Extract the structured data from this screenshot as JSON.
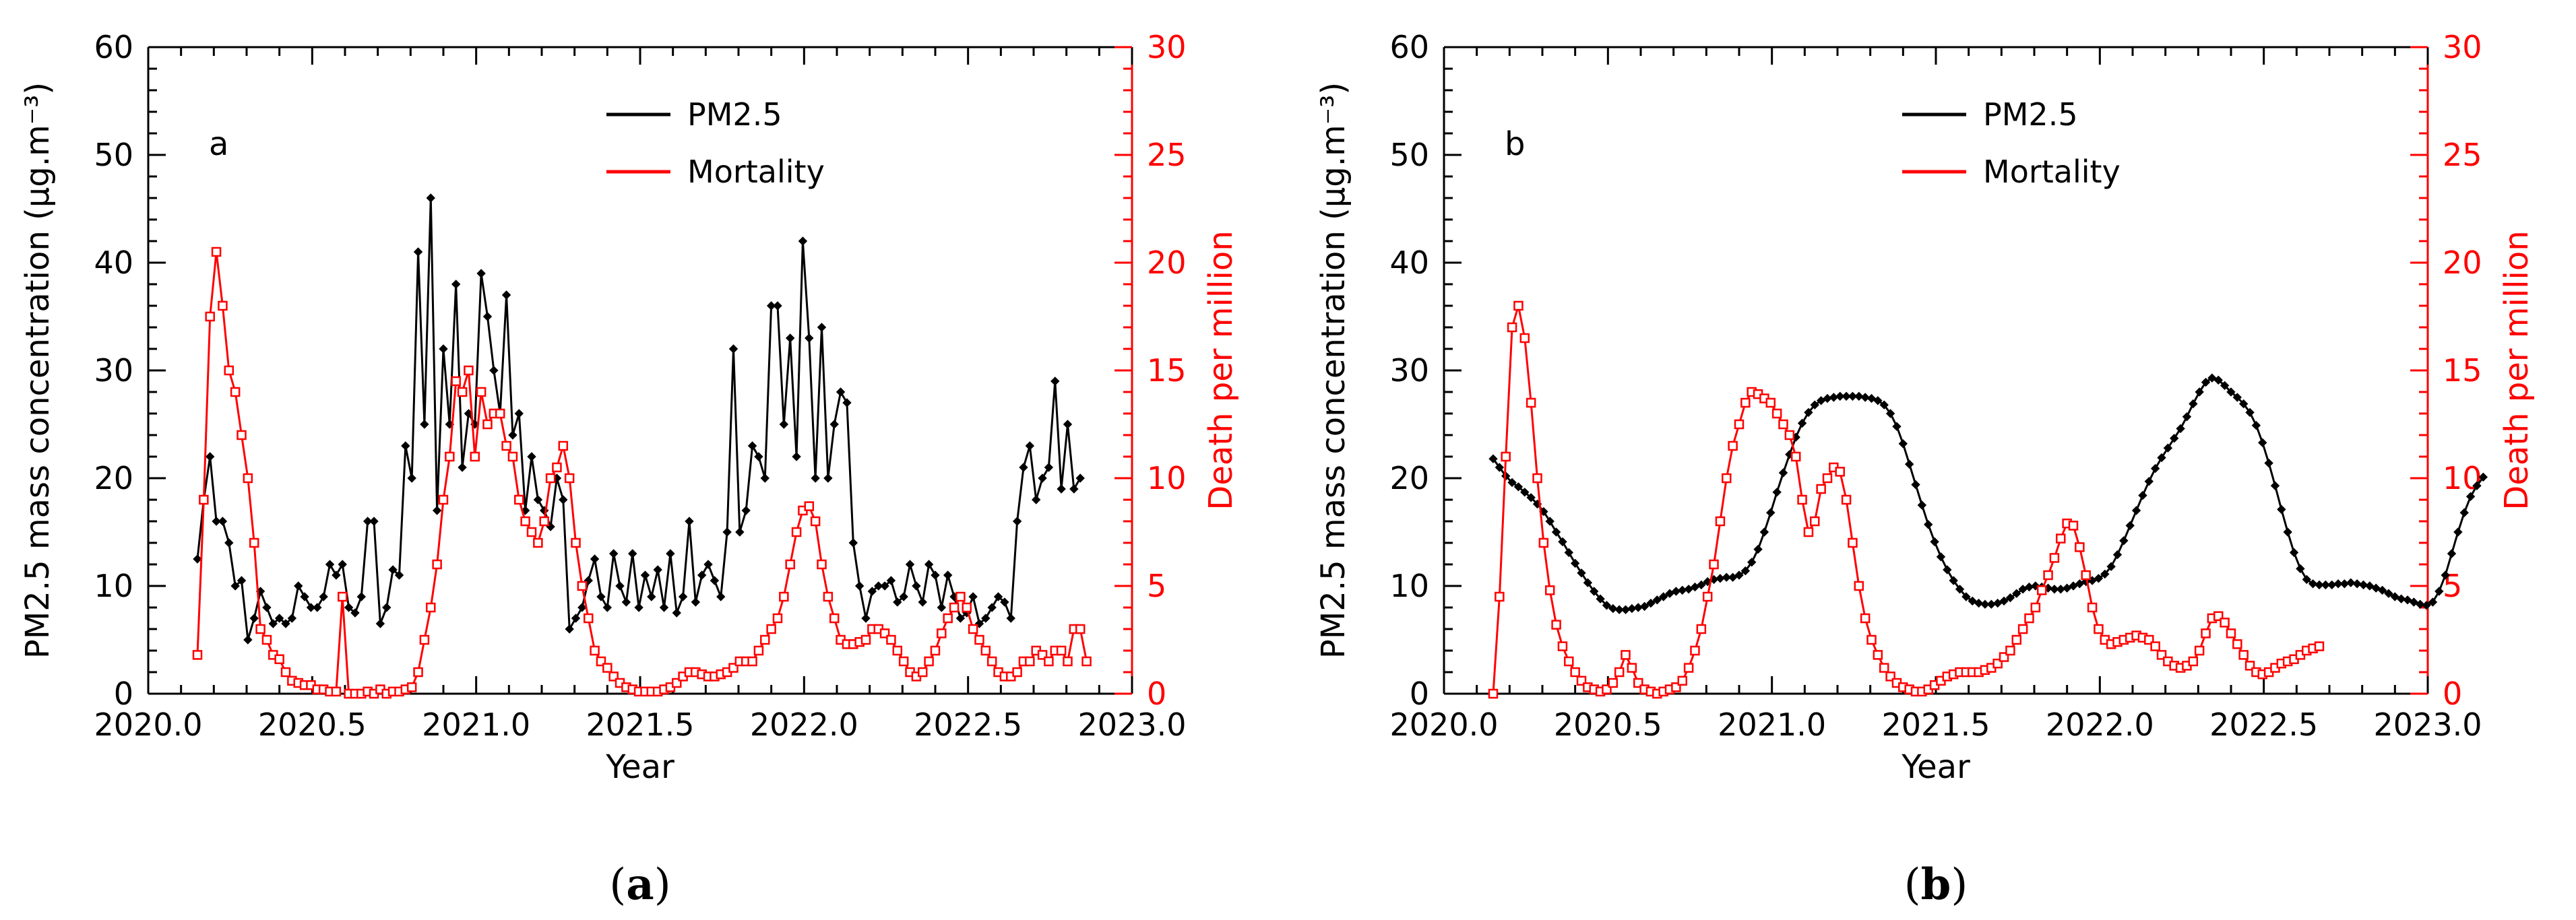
{
  "colors": {
    "pm25": "#000000",
    "mortality": "#ff0000"
  },
  "chart_data": [
    {
      "type": "line",
      "panel_label": "a",
      "caption": {
        "open": "(",
        "letter": "a",
        "close": ")"
      },
      "xlabel": "Year",
      "ylabel_left": "PM2.5 mass concentration (µg.m⁻³)",
      "ylabel_right": "Death per million",
      "xlim": [
        2020.0,
        2023.0
      ],
      "ylim_left": [
        0,
        60
      ],
      "ylim_right": [
        0,
        30
      ],
      "x_ticks": [
        "2020.0",
        "2020.5",
        "2021.0",
        "2021.5",
        "2022.0",
        "2022.5",
        "2023.0"
      ],
      "y_left_ticks": [
        "0",
        "10",
        "20",
        "30",
        "40",
        "50",
        "60"
      ],
      "y_right_ticks": [
        "0",
        "5",
        "10",
        "15",
        "20",
        "25",
        "30"
      ],
      "legend": [
        "PM2.5",
        "Mortality"
      ],
      "x_start": 2020.15,
      "x_step": 0.01923,
      "series": [
        {
          "name": "PM2.5",
          "axis": "left",
          "marker": "diamond",
          "values": [
            12.5,
            18,
            22,
            16,
            16,
            14,
            10,
            10.5,
            5,
            7,
            9.5,
            8,
            6.5,
            7,
            6.5,
            7,
            10,
            9,
            8,
            8,
            9,
            12,
            11,
            12,
            8,
            7.5,
            9,
            16,
            16,
            6.5,
            8,
            11.5,
            11,
            23,
            20,
            41,
            25,
            46,
            17,
            32,
            25,
            38,
            21,
            26,
            25,
            39,
            35,
            30,
            26,
            37,
            24,
            26,
            17,
            22,
            18,
            17,
            15.5,
            20,
            18,
            6,
            7,
            8,
            10.5,
            12.5,
            9,
            8,
            13,
            10,
            8.5,
            13,
            8,
            11,
            9,
            11.5,
            8,
            13,
            7.5,
            9,
            16,
            8.5,
            11,
            12,
            10.5,
            9,
            15,
            32,
            15,
            17,
            23,
            22,
            20,
            36,
            36,
            25,
            33,
            22,
            42,
            33,
            20,
            34,
            20,
            25,
            28,
            27,
            14,
            10,
            7,
            9.5,
            10,
            10,
            10.5,
            8.5,
            9,
            12,
            10,
            8.5,
            12,
            11,
            8,
            11,
            9,
            7,
            7.5,
            9,
            6.5,
            7,
            8,
            9,
            8.5,
            7,
            16,
            21,
            23,
            18,
            20,
            21,
            29,
            19,
            25,
            19,
            20
          ]
        },
        {
          "name": "Mortality",
          "axis": "right",
          "marker": "square",
          "values": [
            1.8,
            9,
            17.5,
            20.5,
            18,
            15,
            14,
            12,
            10,
            7,
            3,
            2.5,
            1.8,
            1.6,
            1,
            0.6,
            0.5,
            0.4,
            0.4,
            0.2,
            0.2,
            0.1,
            0.1,
            4.5,
            0,
            0,
            0,
            0.1,
            0,
            0.2,
            0,
            0.1,
            0.1,
            0.2,
            0.3,
            1,
            2.5,
            4,
            6,
            9,
            11,
            14.5,
            14,
            15,
            11,
            14,
            12.5,
            13,
            13,
            11.5,
            11,
            9,
            8,
            7.5,
            7,
            8,
            10,
            10.5,
            11.5,
            10,
            7,
            5,
            3.5,
            2,
            1.5,
            1.2,
            0.8,
            0.5,
            0.3,
            0.2,
            0.1,
            0.1,
            0.1,
            0.1,
            0.2,
            0.3,
            0.5,
            0.8,
            1,
            1,
            0.9,
            0.8,
            0.8,
            0.9,
            1,
            1.2,
            1.5,
            1.5,
            1.5,
            2,
            2.5,
            3,
            3.5,
            4.5,
            6,
            7.5,
            8.5,
            8.7,
            8,
            6,
            4.5,
            3.5,
            2.5,
            2.3,
            2.3,
            2.4,
            2.5,
            3,
            3,
            2.8,
            2.5,
            2,
            1.5,
            1,
            0.8,
            1,
            1.5,
            2,
            2.8,
            3.5,
            4,
            4.5,
            4,
            3,
            2.5,
            2,
            1.5,
            1,
            0.8,
            0.8,
            1,
            1.5,
            1.5,
            2,
            1.8,
            1.5,
            2,
            2,
            1.5,
            3,
            3,
            1.5
          ]
        }
      ]
    },
    {
      "type": "line",
      "panel_label": "b",
      "caption": {
        "open": "(",
        "letter": "b",
        "close": ")"
      },
      "xlabel": "Year",
      "ylabel_left": "PM2.5 mass concentration (µg.m⁻³)",
      "ylabel_right": "Death per million",
      "xlim": [
        2020.0,
        2023.0
      ],
      "ylim_left": [
        0,
        60
      ],
      "ylim_right": [
        0,
        30
      ],
      "x_ticks": [
        "2020.0",
        "2020.5",
        "2021.0",
        "2021.5",
        "2022.0",
        "2022.5",
        "2023.0"
      ],
      "y_left_ticks": [
        "0",
        "10",
        "20",
        "30",
        "40",
        "50",
        "60"
      ],
      "y_right_ticks": [
        "0",
        "5",
        "10",
        "15",
        "20",
        "25",
        "30"
      ],
      "legend": [
        "PM2.5",
        "Mortality"
      ],
      "x_start": 2020.15,
      "x_step": 0.01923,
      "series": [
        {
          "name": "PM2.5",
          "axis": "left",
          "marker": "diamond",
          "values": [
            21.8,
            21,
            20.2,
            19.6,
            19.2,
            18.7,
            18.2,
            17.6,
            16.9,
            16,
            15,
            14.1,
            13.1,
            12.1,
            11.2,
            10.3,
            9.5,
            8.8,
            8.2,
            7.9,
            7.8,
            7.8,
            7.9,
            8,
            8.1,
            8.4,
            8.7,
            9,
            9.3,
            9.5,
            9.6,
            9.7,
            9.9,
            10.1,
            10.4,
            10.6,
            10.7,
            10.8,
            10.8,
            11,
            11.4,
            12.2,
            13.4,
            15,
            16.8,
            18.7,
            20.5,
            22.2,
            23.8,
            25.1,
            26.1,
            26.8,
            27.2,
            27.4,
            27.5,
            27.6,
            27.6,
            27.6,
            27.6,
            27.5,
            27.4,
            27.2,
            26.8,
            26,
            24.8,
            23.2,
            21.3,
            19.4,
            17.5,
            15.7,
            14.1,
            12.7,
            11.5,
            10.5,
            9.7,
            9,
            8.6,
            8.4,
            8.3,
            8.3,
            8.4,
            8.6,
            8.9,
            9.3,
            9.7,
            9.9,
            10,
            9.9,
            9.8,
            9.7,
            9.7,
            9.8,
            10,
            10.2,
            10.4,
            10.5,
            10.7,
            11.1,
            11.8,
            12.9,
            14.2,
            15.6,
            17,
            18.4,
            19.7,
            20.9,
            21.9,
            22.8,
            23.7,
            24.6,
            25.7,
            26.9,
            28,
            28.9,
            29.3,
            29.1,
            28.6,
            28,
            27.5,
            26.9,
            26.1,
            24.9,
            23.3,
            21.4,
            19.3,
            17.1,
            15,
            13.1,
            11.6,
            10.6,
            10.2,
            10.1,
            10.1,
            10.1,
            10.2,
            10.2,
            10.3,
            10.2,
            10.1,
            10,
            9.8,
            9.6,
            9.3,
            9,
            8.8,
            8.7,
            8.5,
            8.3,
            8.2,
            8.5,
            9.5,
            11,
            13,
            15,
            16.8,
            18.3,
            19.3,
            20.1
          ]
        },
        {
          "name": "Mortality",
          "axis": "right",
          "marker": "square",
          "values": [
            0,
            4.5,
            11,
            17,
            18,
            16.5,
            13.5,
            10,
            7,
            4.8,
            3.2,
            2.2,
            1.5,
            1,
            0.6,
            0.3,
            0.2,
            0.1,
            0.2,
            0.5,
            1,
            1.8,
            1.2,
            0.5,
            0.2,
            0.1,
            0,
            0.1,
            0.2,
            0.3,
            0.6,
            1.2,
            2,
            3,
            4.5,
            6,
            8,
            10,
            11.5,
            12.5,
            13.5,
            14,
            13.9,
            13.7,
            13.5,
            13,
            12.5,
            12,
            11,
            9,
            7.5,
            8,
            9.5,
            10,
            10.5,
            10.3,
            9,
            7,
            5,
            3.5,
            2.5,
            1.8,
            1.2,
            0.8,
            0.5,
            0.3,
            0.2,
            0.1,
            0.1,
            0.2,
            0.4,
            0.6,
            0.8,
            0.9,
            1,
            1,
            1,
            1,
            1.1,
            1.2,
            1.4,
            1.7,
            2,
            2.5,
            3,
            3.5,
            4,
            4.8,
            5.5,
            6.3,
            7.2,
            7.9,
            7.8,
            6.8,
            5.5,
            4,
            3,
            2.5,
            2.3,
            2.4,
            2.5,
            2.6,
            2.7,
            2.6,
            2.5,
            2.2,
            1.8,
            1.5,
            1.3,
            1.2,
            1.3,
            1.5,
            2,
            2.8,
            3.5,
            3.6,
            3.3,
            2.8,
            2.3,
            1.8,
            1.3,
            1,
            0.9,
            1,
            1.2,
            1.4,
            1.5,
            1.6,
            1.8,
            2,
            2.1,
            2.2
          ]
        }
      ]
    }
  ]
}
